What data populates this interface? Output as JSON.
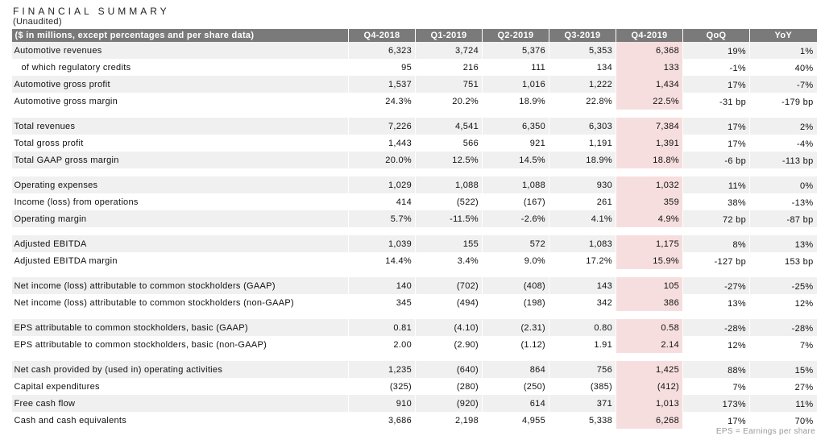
{
  "title": "FINANCIAL SUMMARY",
  "subtitle": "(Unaudited)",
  "header": {
    "label": "($ in millions, except percentages and per share data)",
    "columns": [
      "Q4-2018",
      "Q1-2019",
      "Q2-2019",
      "Q3-2019",
      "Q4-2019",
      "QoQ",
      "YoY"
    ]
  },
  "groups": [
    [
      {
        "label": "Automotive revenues",
        "values": [
          "6,323",
          "3,724",
          "5,376",
          "5,353",
          "6,368"
        ],
        "qoq": "19%",
        "yoy": "1%",
        "shade": true
      },
      {
        "label": "of which regulatory credits",
        "values": [
          "95",
          "216",
          "111",
          "134",
          "133"
        ],
        "qoq": "-1%",
        "yoy": "40%",
        "shade": false,
        "indent": true
      },
      {
        "label": "Automotive gross profit",
        "values": [
          "1,537",
          "751",
          "1,016",
          "1,222",
          "1,434"
        ],
        "qoq": "17%",
        "yoy": "-7%",
        "shade": true
      },
      {
        "label": "Automotive gross margin",
        "values": [
          "24.3%",
          "20.2%",
          "18.9%",
          "22.8%",
          "22.5%"
        ],
        "qoq": "-31 bp",
        "yoy": "-179 bp",
        "shade": false
      }
    ],
    [
      {
        "label": "Total revenues",
        "values": [
          "7,226",
          "4,541",
          "6,350",
          "6,303",
          "7,384"
        ],
        "qoq": "17%",
        "yoy": "2%",
        "shade": true
      },
      {
        "label": "Total gross profit",
        "values": [
          "1,443",
          "566",
          "921",
          "1,191",
          "1,391"
        ],
        "qoq": "17%",
        "yoy": "-4%",
        "shade": false
      },
      {
        "label": "Total GAAP gross margin",
        "values": [
          "20.0%",
          "12.5%",
          "14.5%",
          "18.9%",
          "18.8%"
        ],
        "qoq": "-6 bp",
        "yoy": "-113 bp",
        "shade": true
      }
    ],
    [
      {
        "label": "Operating expenses",
        "values": [
          "1,029",
          "1,088",
          "1,088",
          "930",
          "1,032"
        ],
        "qoq": "11%",
        "yoy": "0%",
        "shade": true
      },
      {
        "label": "Income (loss) from operations",
        "values": [
          "414",
          "(522)",
          "(167)",
          "261",
          "359"
        ],
        "qoq": "38%",
        "yoy": "-13%",
        "shade": false
      },
      {
        "label": "Operating margin",
        "values": [
          "5.7%",
          "-11.5%",
          "-2.6%",
          "4.1%",
          "4.9%"
        ],
        "qoq": "72 bp",
        "yoy": "-87 bp",
        "shade": true
      }
    ],
    [
      {
        "label": "Adjusted EBITDA",
        "values": [
          "1,039",
          "155",
          "572",
          "1,083",
          "1,175"
        ],
        "qoq": "8%",
        "yoy": "13%",
        "shade": true
      },
      {
        "label": "Adjusted EBITDA margin",
        "values": [
          "14.4%",
          "3.4%",
          "9.0%",
          "17.2%",
          "15.9%"
        ],
        "qoq": "-127 bp",
        "yoy": "153 bp",
        "shade": false
      }
    ],
    [
      {
        "label": "Net income (loss) attributable to common stockholders (GAAP)",
        "values": [
          "140",
          "(702)",
          "(408)",
          "143",
          "105"
        ],
        "qoq": "-27%",
        "yoy": "-25%",
        "shade": true
      },
      {
        "label": "Net income (loss) attributable to common stockholders (non-GAAP)",
        "values": [
          "345",
          "(494)",
          "(198)",
          "342",
          "386"
        ],
        "qoq": "13%",
        "yoy": "12%",
        "shade": false
      }
    ],
    [
      {
        "label": "EPS attributable to common stockholders, basic (GAAP)",
        "values": [
          "0.81",
          "(4.10)",
          "(2.31)",
          "0.80",
          "0.58"
        ],
        "qoq": "-28%",
        "yoy": "-28%",
        "shade": true
      },
      {
        "label": "EPS attributable to common stockholders, basic (non-GAAP)",
        "values": [
          "2.00",
          "(2.90)",
          "(1.12)",
          "1.91",
          "2.14"
        ],
        "qoq": "12%",
        "yoy": "7%",
        "shade": false
      }
    ],
    [
      {
        "label": "Net cash provided by (used in) operating activities",
        "values": [
          "1,235",
          "(640)",
          "864",
          "756",
          "1,425"
        ],
        "qoq": "88%",
        "yoy": "15%",
        "shade": true
      },
      {
        "label": "Capital expenditures",
        "values": [
          "(325)",
          "(280)",
          "(250)",
          "(385)",
          "(412)"
        ],
        "qoq": "7%",
        "yoy": "27%",
        "shade": false
      },
      {
        "label": "Free cash flow",
        "values": [
          "910",
          "(920)",
          "614",
          "371",
          "1,013"
        ],
        "qoq": "173%",
        "yoy": "11%",
        "shade": true
      },
      {
        "label": "Cash and cash equivalents",
        "values": [
          "3,686",
          "2,198",
          "4,955",
          "5,338",
          "6,268"
        ],
        "qoq": "17%",
        "yoy": "70%",
        "shade": false
      }
    ]
  ],
  "footnote": "EPS = Earnings per share",
  "colors": {
    "header_bg": "#7a7a7a",
    "row_shade": "#f0f0f0",
    "highlight_q4_2019": "#f7dede"
  }
}
